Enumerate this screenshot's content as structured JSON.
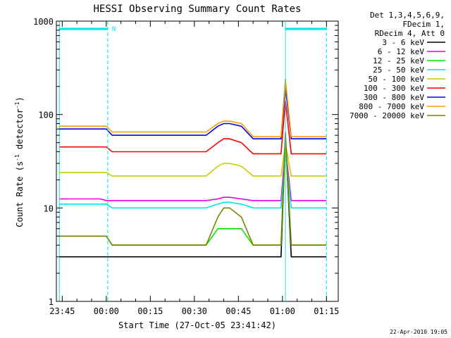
{
  "chart_data": {
    "type": "line",
    "title": "HESSI Observing Summary Count Rates",
    "xlabel": "Start Time (27-Oct-05 23:41:42)",
    "ylabel_main": "Count Rate (s",
    "ylabel_sup1": "-1",
    "ylabel_mid": " detector",
    "ylabel_sup2": "-1",
    "ylabel_end": ")",
    "y_scale": "log",
    "ylim": [
      1,
      1000
    ],
    "xlim_minutes": [
      -17,
      79
    ],
    "x_ticks": [
      {
        "label": "23:45",
        "min": -15
      },
      {
        "label": "00:00",
        "min": 0
      },
      {
        "label": "00:15",
        "min": 15
      },
      {
        "label": "00:30",
        "min": 30
      },
      {
        "label": "00:45",
        "min": 45
      },
      {
        "label": "01:00",
        "min": 60
      },
      {
        "label": "01:15",
        "min": 75
      }
    ],
    "y_ticks": [
      {
        "label": "1",
        "value": 1
      },
      {
        "label": "10",
        "value": 10
      },
      {
        "label": "100",
        "value": 100
      },
      {
        "label": "1000",
        "value": 1000
      }
    ],
    "legend_header": [
      "Det 1,3,4,5,6,9,",
      "FDecim 1,",
      "RDecim 4, Att 0"
    ],
    "legend_position": "right",
    "night_marker": {
      "label": "N",
      "color": "#00e5e5",
      "intervals_min": [
        [
          -16,
          0.5
        ],
        [
          61,
          75
        ]
      ]
    },
    "vlines_min": [
      -16,
      0.5,
      61,
      75
    ],
    "series": [
      {
        "name": "3 - 6 keV",
        "color": "#000000",
        "values": [
          3.0,
          3.0,
          3.0,
          3.0,
          3.0,
          3.0,
          3.0,
          3.0,
          3.0,
          3.0,
          3.0,
          3.0,
          3.0,
          3.0,
          3.0,
          3.0,
          3.0,
          3.0,
          3.0,
          3.0,
          3.0,
          3.0,
          3.0,
          3.0,
          60.0,
          3.0,
          3.0,
          3.0
        ]
      },
      {
        "name": "6 - 12 keV",
        "color": "#e600e6",
        "values": [
          12.5,
          12.5,
          12.5,
          12.5,
          12.5,
          12.0,
          12.0,
          12.0,
          12.0,
          12.0,
          12.0,
          12.0,
          12.0,
          12.0,
          12.0,
          12.0,
          12.5,
          13.0,
          13.0,
          12.5,
          12.0,
          12.0,
          12.0,
          12.0,
          45.0,
          12.0,
          12.0,
          12.0
        ]
      },
      {
        "name": "12 - 25 keV",
        "color": "#00e600",
        "values": [
          5.0,
          5.0,
          5.0,
          5.0,
          5.0,
          5.0,
          4.0,
          4.0,
          4.0,
          4.0,
          4.0,
          4.0,
          4.0,
          4.0,
          4.0,
          4.0,
          6.0,
          6.0,
          6.0,
          6.0,
          4.0,
          4.0,
          4.0,
          4.0,
          55.0,
          4.0,
          4.0,
          4.0
        ]
      },
      {
        "name": "25 - 50 keV",
        "color": "#00e5e5",
        "values": [
          11.0,
          11.0,
          11.0,
          11.0,
          11.0,
          11.0,
          10.0,
          10.0,
          10.0,
          10.0,
          10.0,
          10.0,
          10.0,
          10.0,
          10.0,
          10.0,
          11.0,
          11.5,
          11.5,
          11.0,
          10.0,
          10.0,
          10.0,
          10.0,
          40.0,
          10.0,
          10.0,
          10.0
        ]
      },
      {
        "name": "50 - 100 keV",
        "color": "#cccc00",
        "values": [
          24.0,
          24.0,
          24.0,
          24.0,
          24.0,
          24.0,
          22.0,
          22.0,
          22.0,
          22.0,
          22.0,
          22.0,
          22.0,
          22.0,
          22.0,
          22.0,
          28.0,
          30.0,
          30.0,
          28.0,
          22.0,
          22.0,
          22.0,
          22.0,
          50.0,
          22.0,
          22.0,
          22.0
        ]
      },
      {
        "name": "100 - 300 keV",
        "color": "#ff0000",
        "values": [
          45.0,
          45.0,
          45.0,
          45.0,
          45.0,
          45.0,
          40.0,
          40.0,
          40.0,
          40.0,
          40.0,
          40.0,
          40.0,
          40.0,
          40.0,
          40.0,
          50.0,
          55.0,
          55.0,
          50.0,
          38.0,
          38.0,
          38.0,
          38.0,
          140.0,
          38.0,
          38.0,
          38.0
        ]
      },
      {
        "name": "300 - 800 keV",
        "color": "#0000ff",
        "values": [
          70.0,
          70.0,
          70.0,
          70.0,
          70.0,
          70.0,
          60.0,
          60.0,
          60.0,
          60.0,
          60.0,
          60.0,
          60.0,
          60.0,
          60.0,
          60.0,
          75.0,
          80.0,
          80.0,
          75.0,
          55.0,
          55.0,
          55.0,
          55.0,
          200.0,
          55.0,
          55.0,
          55.0
        ]
      },
      {
        "name": "800 - 7000 keV",
        "color": "#ff9900",
        "values": [
          75.0,
          75.0,
          75.0,
          75.0,
          75.0,
          75.0,
          65.0,
          65.0,
          65.0,
          65.0,
          65.0,
          65.0,
          65.0,
          65.0,
          65.0,
          65.0,
          80.0,
          85.0,
          85.0,
          80.0,
          58.0,
          58.0,
          58.0,
          58.0,
          240.0,
          58.0,
          58.0,
          58.0
        ]
      },
      {
        "name": "7000 - 20000 keV",
        "color": "#808000",
        "values": [
          5.0,
          5.0,
          5.0,
          5.0,
          5.0,
          5.0,
          4.0,
          4.0,
          4.0,
          4.0,
          4.0,
          4.0,
          4.0,
          4.0,
          4.0,
          4.0,
          8.0,
          10.0,
          10.0,
          8.0,
          4.0,
          4.0,
          4.0,
          4.0,
          65.0,
          4.0,
          4.0,
          4.0
        ]
      }
    ],
    "x_minutes": [
      -16.0,
      -12.0,
      -8.0,
      -4.0,
      -2.0,
      0.0,
      2.0,
      6.0,
      10.0,
      14.0,
      18.0,
      22.0,
      26.0,
      30.0,
      32.0,
      34.0,
      38.0,
      40.0,
      42.0,
      46.0,
      50.0,
      54.0,
      57.5,
      59.5,
      61.0,
      63.0,
      70.0,
      75.0
    ]
  },
  "timestamp": "22-Apr-2010 19:05"
}
